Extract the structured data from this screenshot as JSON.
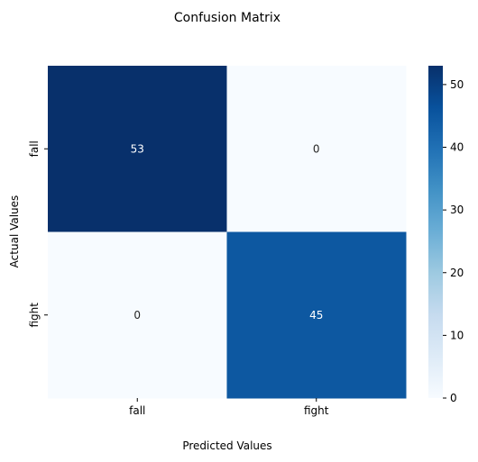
{
  "chart_data": {
    "type": "heatmap",
    "title": "Confusion Matrix",
    "xlabel": "Predicted Values",
    "ylabel": "Actual Values",
    "x_categories": [
      "fall",
      "fight"
    ],
    "y_categories": [
      "fall",
      "fight"
    ],
    "values": [
      [
        53,
        0
      ],
      [
        0,
        45
      ]
    ],
    "colorbar": {
      "min": 0,
      "max": 53,
      "ticks": [
        0,
        10,
        20,
        30,
        40,
        50
      ],
      "colormap": "Blues",
      "low_color": "#f7fbff",
      "high_color": "#08306b"
    },
    "annotate": true,
    "grid": false
  }
}
